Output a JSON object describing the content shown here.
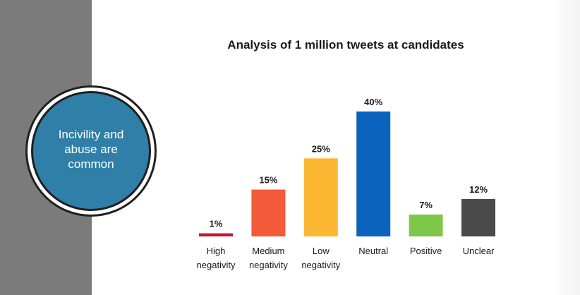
{
  "callout": {
    "text": "Incivility and abuse are common"
  },
  "colors": {
    "side_band": "#7b7b7b",
    "callout_fill": "#2f7fa9",
    "bars": [
      "#c0182f",
      "#f25a3a",
      "#fbb731",
      "#0b63be",
      "#7ec74a",
      "#4a4a4a"
    ]
  },
  "chart_data": {
    "type": "bar",
    "title": "Analysis of 1 million tweets at candidates",
    "categories": [
      [
        "High",
        "negativity"
      ],
      [
        "Medium",
        "negativity"
      ],
      [
        "Low",
        "negativity"
      ],
      [
        "Neutral"
      ],
      [
        "Positive"
      ],
      [
        "Unclear"
      ]
    ],
    "values": [
      1,
      15,
      25,
      40,
      7,
      12
    ],
    "data_labels": [
      "1%",
      "15%",
      "25%",
      "40%",
      "7%",
      "12%"
    ],
    "xlabel": "",
    "ylabel": "",
    "ylim": [
      0,
      40
    ],
    "grid": false,
    "legend": "none"
  }
}
